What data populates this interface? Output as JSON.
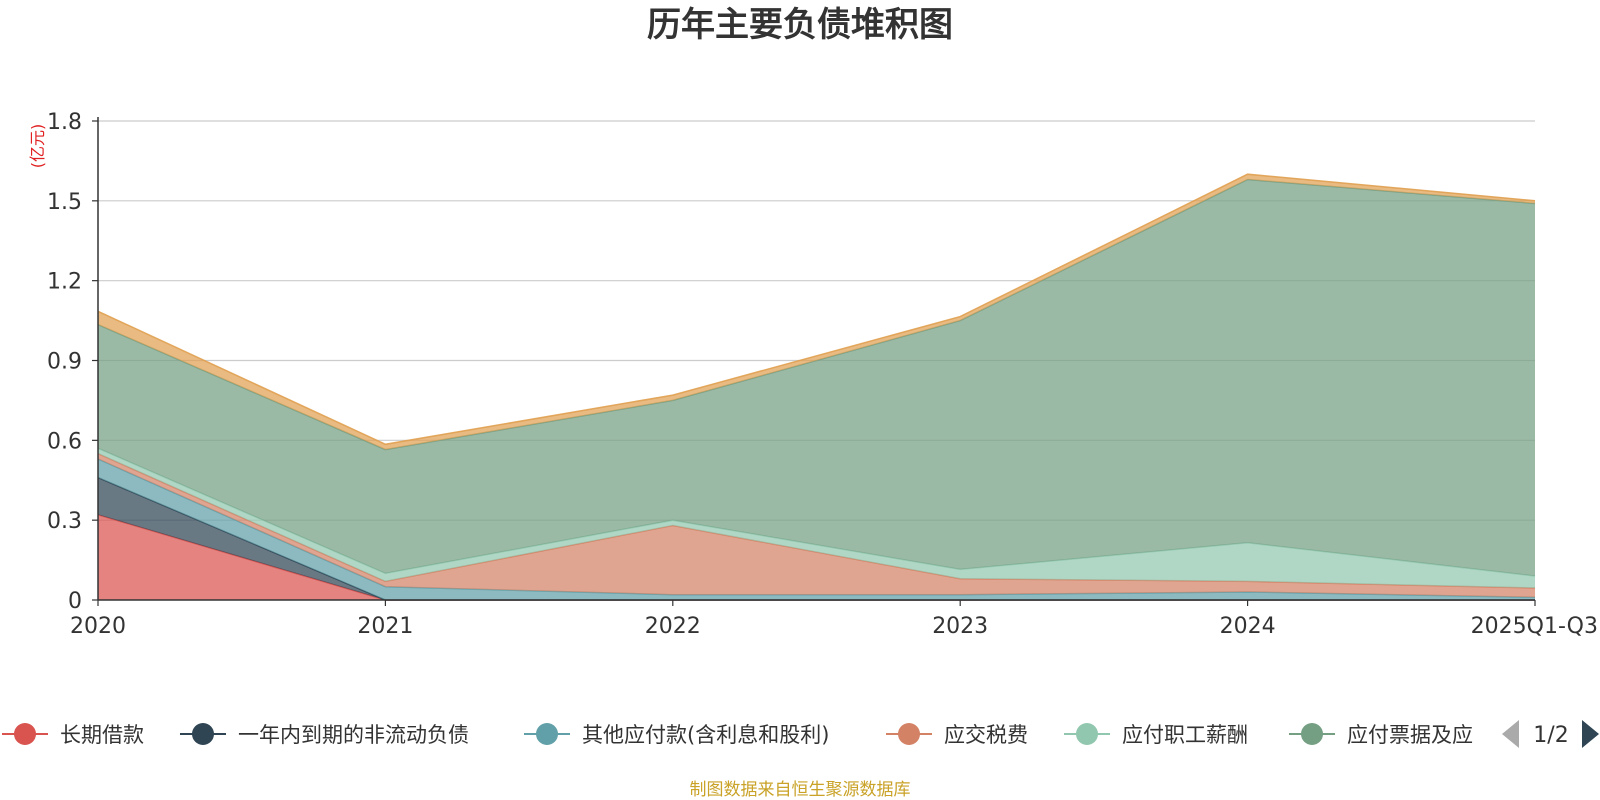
{
  "chart_data": {
    "type": "area",
    "stacked": true,
    "title": "历年主要负债堆积图",
    "unit": "(亿元)",
    "categories": [
      "2020",
      "2021",
      "2022",
      "2023",
      "2024",
      "2025Q1-Q3"
    ],
    "ylim": [
      0,
      1.8
    ],
    "yticks": [
      "0",
      "0.3",
      "0.6",
      "0.9",
      "1.2",
      "1.5",
      "1.8"
    ],
    "grid": true,
    "series": [
      {
        "name": "长期借款",
        "color": "#d9534f",
        "values": [
          0.32,
          0.0,
          0.0,
          0.0,
          0.0,
          0.0
        ]
      },
      {
        "name": "一年内到期的非流动负债",
        "color": "#2f4554",
        "values": [
          0.14,
          0.0,
          0.0,
          0.0,
          0.0,
          0.0
        ]
      },
      {
        "name": "其他应付款(含利息和股利)",
        "color": "#61a0a8",
        "values": [
          0.07,
          0.05,
          0.02,
          0.02,
          0.03,
          0.01
        ]
      },
      {
        "name": "应交税费",
        "color": "#d48265",
        "values": [
          0.02,
          0.02,
          0.26,
          0.06,
          0.04,
          0.035
        ]
      },
      {
        "name": "应付职工薪酬",
        "color": "#91c7ae",
        "values": [
          0.02,
          0.03,
          0.02,
          0.035,
          0.145,
          0.045
        ]
      },
      {
        "name": "应付票据及应付账款",
        "color": "#749f83",
        "values": [
          0.465,
          0.465,
          0.45,
          0.935,
          1.365,
          1.4
        ]
      },
      {
        "name": "",
        "color": "#e0a050",
        "values": [
          0.05,
          0.02,
          0.02,
          0.015,
          0.02,
          0.01
        ]
      }
    ],
    "legend": {
      "position": "bottom",
      "visible_labels": [
        "长期借款",
        "一年内到期的非流动负债",
        "其他应付款(含利息和股利)",
        "应交税费",
        "应付职工薪酬",
        "应付票据及应"
      ],
      "page": "1/2"
    }
  },
  "footer": {
    "source": "制图数据来自恒生聚源数据库"
  }
}
